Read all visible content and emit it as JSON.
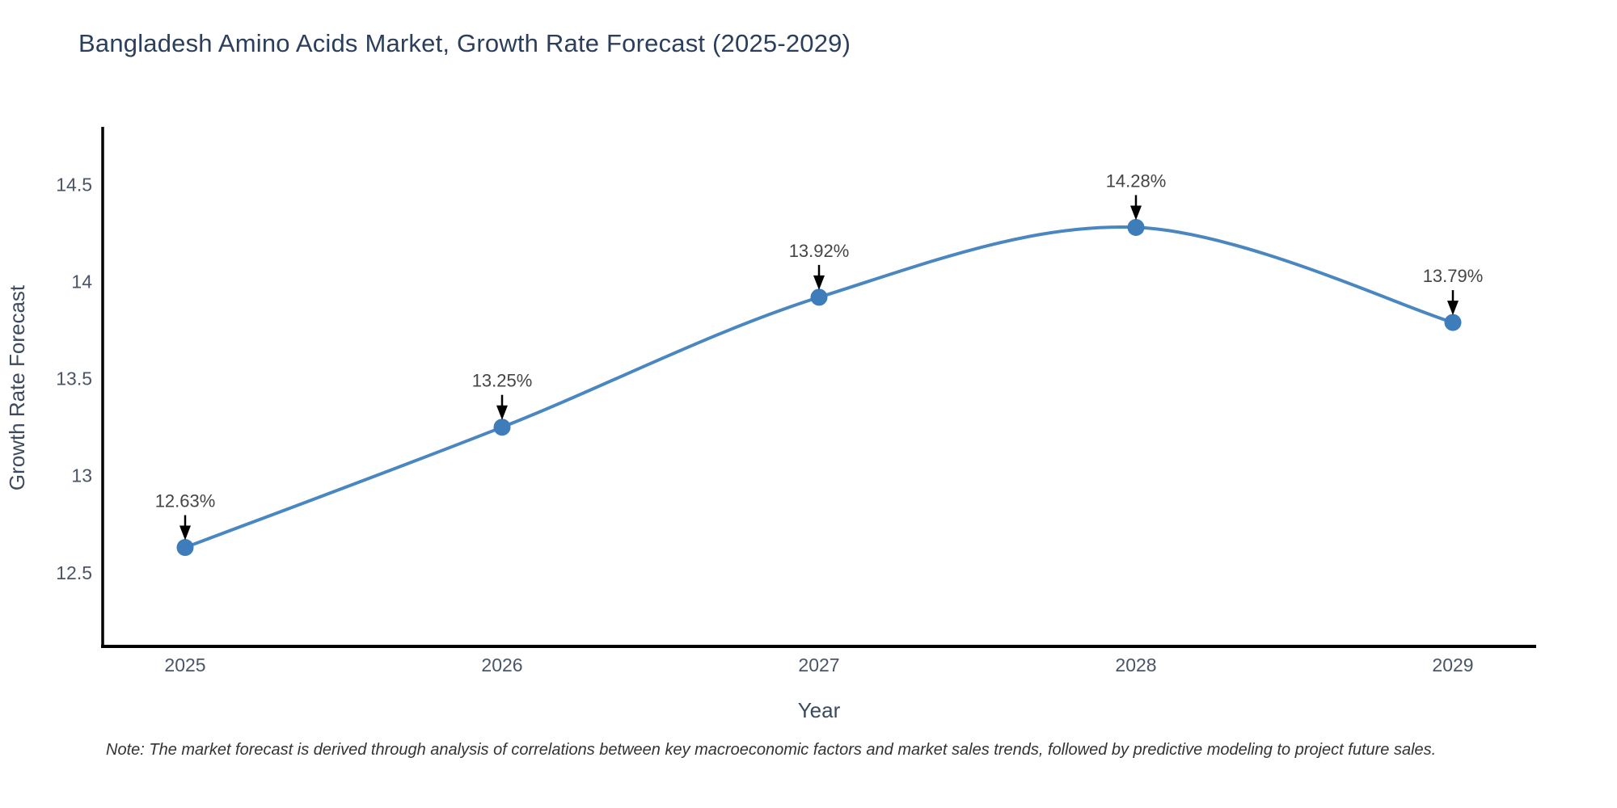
{
  "note": "Note: The market forecast is derived through analysis of correlations between key macroeconomic factors and market sales trends, followed by predictive modeling to project future sales.",
  "chart_data": {
    "type": "line",
    "title": "Bangladesh Amino Acids Market, Growth Rate Forecast (2025-2029)",
    "xlabel": "Year",
    "ylabel": "Growth Rate Forecast",
    "x": [
      2025,
      2026,
      2027,
      2028,
      2029
    ],
    "y": [
      12.63,
      13.25,
      13.92,
      14.28,
      13.79
    ],
    "point_labels": [
      "12.63%",
      "13.25%",
      "13.92%",
      "14.28%",
      "13.79%"
    ],
    "xticklabels": [
      "2025",
      "2026",
      "2027",
      "2028",
      "2029"
    ],
    "yticks": [
      12.5,
      13,
      13.5,
      14,
      14.5
    ],
    "yticklabels": [
      "12.5",
      "13",
      "13.5",
      "14",
      "14.5"
    ],
    "ylim": [
      12.12,
      14.79
    ],
    "line_shape": "spline",
    "grid": false,
    "legend": "none",
    "colors": {
      "line": "#4a86bf",
      "marker": "#3e7dba",
      "axis": "#000000",
      "arrow": "#000000",
      "tick_label": "#4a5568",
      "annotation_text": "#454545",
      "axis_title": "#3b4a5f",
      "title": "#2b3f5c"
    }
  }
}
